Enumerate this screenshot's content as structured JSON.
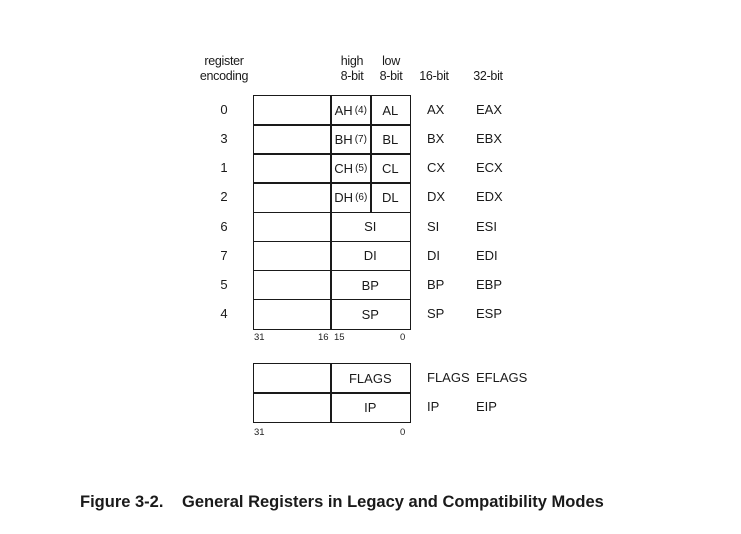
{
  "headers": {
    "register_encoding": [
      "register",
      "encoding"
    ],
    "high": [
      "high",
      "8-bit"
    ],
    "low": [
      "low",
      "8-bit"
    ],
    "bit16": "16-bit",
    "bit32": "32-bit"
  },
  "rows": [
    {
      "enc": "0",
      "hi": "AH",
      "hi_note": "(4)",
      "lo": "AL",
      "r16": "AX",
      "r32": "EAX"
    },
    {
      "enc": "3",
      "hi": "BH",
      "hi_note": "(7)",
      "lo": "BL",
      "r16": "BX",
      "r32": "EBX"
    },
    {
      "enc": "1",
      "hi": "CH",
      "hi_note": "(5)",
      "lo": "CL",
      "r16": "CX",
      "r32": "ECX"
    },
    {
      "enc": "2",
      "hi": "DH",
      "hi_note": "(6)",
      "lo": "DL",
      "r16": "DX",
      "r32": "EDX"
    },
    {
      "enc": "6",
      "mid": "SI",
      "r16": "SI",
      "r32": "ESI"
    },
    {
      "enc": "7",
      "mid": "DI",
      "r16": "DI",
      "r32": "EDI"
    },
    {
      "enc": "5",
      "mid": "BP",
      "r16": "BP",
      "r32": "EBP"
    },
    {
      "enc": "4",
      "mid": "SP",
      "r16": "SP",
      "r32": "ESP"
    }
  ],
  "bit_ticks_top": {
    "b31": "31",
    "b16": "16",
    "b15": "15",
    "b0": "0"
  },
  "special": [
    {
      "mid": "FLAGS",
      "r16": "FLAGS",
      "r32": "EFLAGS"
    },
    {
      "mid": "IP",
      "r16": "IP",
      "r32": "EIP"
    }
  ],
  "bit_ticks_bottom": {
    "b31": "31",
    "b0": "0"
  },
  "caption": {
    "number": "Figure 3-2.",
    "title": "General Registers in Legacy and Compatibility Modes"
  }
}
